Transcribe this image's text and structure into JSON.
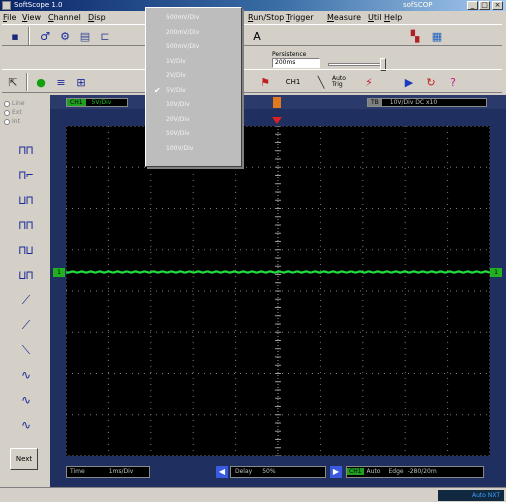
{
  "window": {
    "title": "SoftScope 1.0",
    "brand": "sofSCOP",
    "controls": [
      "_",
      "□",
      "×"
    ]
  },
  "menu": [
    "File",
    "View",
    "Channel",
    "Disp",
    "Run/Stop",
    "Trigger",
    "Measure",
    "Util",
    "Help"
  ],
  "persistence": {
    "label": "Persistence",
    "value": "200ms"
  },
  "toolbar2": {
    "chan_label": "CH1",
    "auto_label": "Auto Trig"
  },
  "radio_options": [
    "Line",
    "Ext",
    "Int"
  ],
  "volts_menu": {
    "items": [
      "500mV/Div",
      "200mV/Div",
      "500mV/Div",
      "1V/Div",
      "2V/Div",
      "5V/Div",
      "10V/Div",
      "20V/Div",
      "50V/Div",
      "100V/Div"
    ],
    "checked_index": 5,
    "check_mark": "✔"
  },
  "channel_bar": {
    "ch1_tag": "CH1",
    "ch1_value": "5V/Div",
    "tb_tag": "TB",
    "tb_value": "10V/Div  DC x10"
  },
  "trace_marker": "1",
  "next_button": "Next",
  "bottom": {
    "time_label": "Time",
    "time_value": "1ms/Div",
    "delay_label": "Delay",
    "delay_value": "50%",
    "trig_tag": "CH1",
    "trig_mode": "Auto",
    "trig_edge": "Edge",
    "trig_value": "-280/20m",
    "left_arrow": "◀",
    "right_arrow": "▶"
  },
  "status": {
    "text": "Auto NXT"
  },
  "colors": {
    "trace": "#20e040",
    "grid_bg": "#000000",
    "frame": "#1f2f5f",
    "menu_bg": "#bdbdbd"
  },
  "icons": [
    "save-icon",
    "probe-icon",
    "settings-icon",
    "cursor-icon",
    "run-icon",
    "measure-icon",
    "zoom-icon",
    "trigger-icon",
    "play-icon",
    "refresh-icon",
    "help-icon"
  ]
}
